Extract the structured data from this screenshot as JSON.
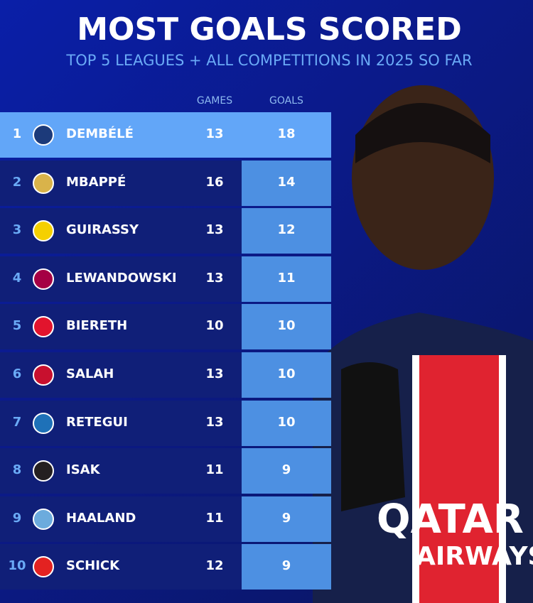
{
  "header": {
    "title": "MOST GOALS SCORED",
    "subtitle": "TOP 5 LEAGUES + ALL COMPETITIONS IN 2025 SO FAR"
  },
  "colors": {
    "background": "#0b1a8a",
    "highlight_row": "#62a6f8",
    "goal_cell": "#4d90e2",
    "row": "#101f78",
    "subtitle": "#6aaaf6"
  },
  "chart_data": {
    "type": "table",
    "title": "MOST GOALS SCORED",
    "subtitle": "TOP 5 LEAGUES + ALL COMPETITIONS IN 2025 SO FAR",
    "columns": [
      "GAMES",
      "GOALS"
    ],
    "rows": [
      {
        "rank": "1",
        "player": "DEMBÉLÉ",
        "club_icon": "psg-crest",
        "logo_color": "#1c3a7a",
        "games": 13,
        "goals": 18
      },
      {
        "rank": "2",
        "player": "MBAPPÉ",
        "club_icon": "real-madrid-crest",
        "logo_color": "#d9b34a",
        "games": 16,
        "goals": 14
      },
      {
        "rank": "3",
        "player": "GUIRASSY",
        "club_icon": "dortmund-crest",
        "logo_color": "#f5d000",
        "games": 13,
        "goals": 12
      },
      {
        "rank": "4",
        "player": "LEWANDOWSKI",
        "club_icon": "barcelona-crest",
        "logo_color": "#a50044",
        "games": 13,
        "goals": 11
      },
      {
        "rank": "5",
        "player": "BIERETH",
        "club_icon": "monaco-crest",
        "logo_color": "#e2142d",
        "games": 10,
        "goals": 10
      },
      {
        "rank": "6",
        "player": "SALAH",
        "club_icon": "liverpool-crest",
        "logo_color": "#c8102e",
        "games": 13,
        "goals": 10
      },
      {
        "rank": "7",
        "player": "RETEGUI",
        "club_icon": "atalanta-crest",
        "logo_color": "#1e71b8",
        "games": 13,
        "goals": 10
      },
      {
        "rank": "8",
        "player": "ISAK",
        "club_icon": "newcastle-crest",
        "logo_color": "#241f20",
        "games": 11,
        "goals": 9
      },
      {
        "rank": "9",
        "player": "HAALAND",
        "club_icon": "man-city-crest",
        "logo_color": "#6cabdd",
        "games": 11,
        "goals": 9
      },
      {
        "rank": "10",
        "player": "SCHICK",
        "club_icon": "leverkusen-crest",
        "logo_color": "#e32221",
        "games": 12,
        "goals": 9
      }
    ]
  }
}
